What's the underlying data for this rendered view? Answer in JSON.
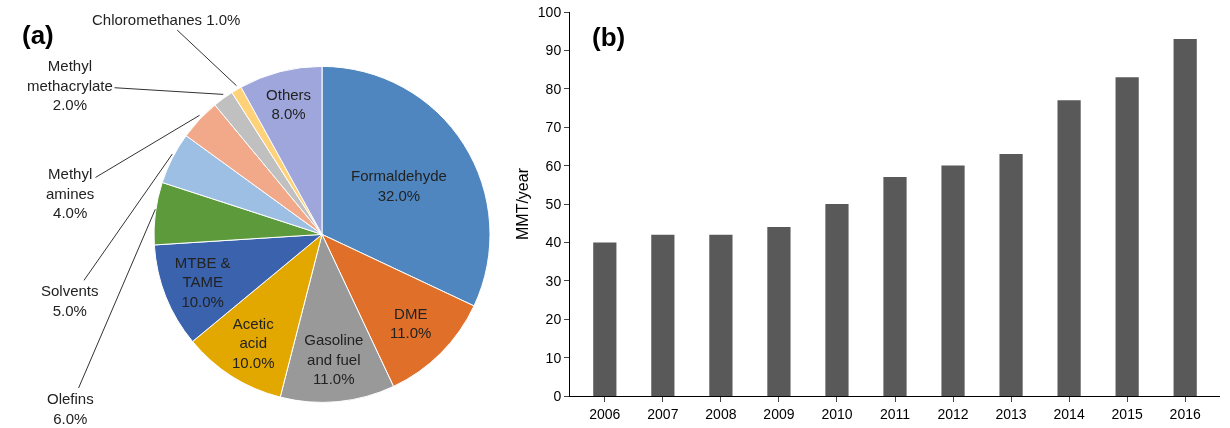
{
  "chart_data": [
    {
      "type": "pie",
      "title": "(a)",
      "categories": [
        "Formaldehyde",
        "DME",
        "Gasoline and fuel",
        "Acetic acid",
        "MTBE & TAME",
        "Olefins",
        "Solvents",
        "Methyl amines",
        "Methyl methacrylate",
        "Chloromethanes",
        "Others"
      ],
      "values": [
        32,
        11,
        11,
        10,
        10,
        6,
        5,
        4,
        2,
        1,
        8
      ],
      "value_labels": [
        "32.0%",
        "11.0%",
        "11.0%",
        "10.0%",
        "10.0%",
        "6.0%",
        "5.0%",
        "4.0%",
        "2.0%",
        "1.0%",
        "8.0%"
      ],
      "colors": [
        "#4f86c0",
        "#e07029",
        "#999999",
        "#e3a800",
        "#3a62ad",
        "#5c9a3c",
        "#9dbfe3",
        "#f2a98a",
        "#c0c0c0",
        "#ffd27a",
        "#9ea6dc"
      ],
      "legend": false
    },
    {
      "type": "bar",
      "title": "(b)",
      "ylabel": "MMT/year",
      "categories": [
        "2006",
        "2007",
        "2008",
        "2009",
        "2010",
        "2011",
        "2012",
        "2013",
        "2014",
        "2015",
        "2016"
      ],
      "values": [
        40,
        42,
        42,
        44,
        50,
        57,
        60,
        63,
        77,
        83,
        93
      ],
      "color": "#595959",
      "ylim": [
        0,
        100
      ],
      "yticks": [
        0,
        10,
        20,
        30,
        40,
        50,
        60,
        70,
        80,
        90,
        100
      ],
      "grid": false,
      "legend": false
    }
  ]
}
